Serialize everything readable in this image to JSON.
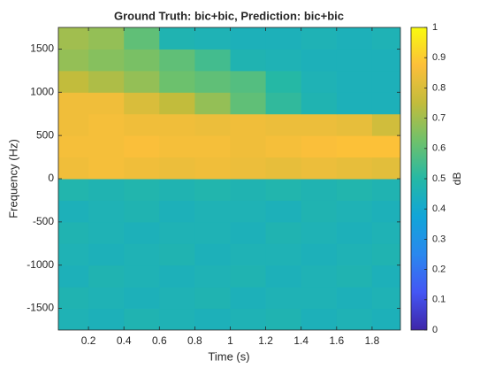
{
  "chart_data": {
    "type": "spectrogram",
    "title": "Ground Truth: bic+bic, Prediction: bic+bic",
    "x_label": "Time (s)",
    "y_label": "Frequency (Hz)",
    "colorbar_label": "dB",
    "x": [
      0.1,
      0.3,
      0.5,
      0.7,
      0.9,
      1.1,
      1.3,
      1.5,
      1.7,
      1.9
    ],
    "y": [
      -1625,
      -1375,
      -1125,
      -875,
      -625,
      -375,
      -125,
      125,
      375,
      625,
      875,
      1125,
      1375,
      1625
    ],
    "values": [
      [
        0.46,
        0.45,
        0.47,
        0.46,
        0.45,
        0.46,
        0.47,
        0.45,
        0.46,
        0.45
      ],
      [
        0.47,
        0.46,
        0.45,
        0.46,
        0.47,
        0.45,
        0.46,
        0.46,
        0.45,
        0.46
      ],
      [
        0.45,
        0.47,
        0.46,
        0.45,
        0.46,
        0.47,
        0.45,
        0.46,
        0.47,
        0.45
      ],
      [
        0.46,
        0.45,
        0.46,
        0.47,
        0.45,
        0.46,
        0.46,
        0.45,
        0.46,
        0.47
      ],
      [
        0.47,
        0.46,
        0.45,
        0.46,
        0.46,
        0.45,
        0.47,
        0.46,
        0.45,
        0.46
      ],
      [
        0.45,
        0.46,
        0.47,
        0.45,
        0.46,
        0.46,
        0.45,
        0.47,
        0.46,
        0.45
      ],
      [
        0.48,
        0.47,
        0.48,
        0.47,
        0.48,
        0.47,
        0.48,
        0.47,
        0.48,
        0.47
      ],
      [
        0.85,
        0.86,
        0.85,
        0.84,
        0.85,
        0.84,
        0.83,
        0.84,
        0.83,
        0.82
      ],
      [
        0.86,
        0.86,
        0.87,
        0.86,
        0.86,
        0.85,
        0.86,
        0.87,
        0.88,
        0.88
      ],
      [
        0.85,
        0.86,
        0.85,
        0.85,
        0.84,
        0.85,
        0.84,
        0.84,
        0.83,
        0.78
      ],
      [
        0.85,
        0.85,
        0.8,
        0.75,
        0.68,
        0.6,
        0.52,
        0.47,
        0.45,
        0.45
      ],
      [
        0.75,
        0.72,
        0.68,
        0.62,
        0.6,
        0.58,
        0.5,
        0.46,
        0.45,
        0.45
      ],
      [
        0.68,
        0.66,
        0.64,
        0.6,
        0.55,
        0.47,
        0.46,
        0.45,
        0.45,
        0.45
      ],
      [
        0.7,
        0.68,
        0.6,
        0.47,
        0.46,
        0.45,
        0.45,
        0.46,
        0.45,
        0.46
      ]
    ],
    "xlim": [
      0.03,
      1.96
    ],
    "ylim": [
      -1750,
      1750
    ],
    "xticks": [
      0.2,
      0.4,
      0.6,
      0.8,
      1,
      1.2,
      1.4,
      1.6,
      1.8
    ],
    "yticks": [
      -1500,
      -1000,
      -500,
      0,
      500,
      1000,
      1500
    ],
    "clim": [
      0,
      1
    ],
    "cticks": [
      0,
      0.1,
      0.2,
      0.3,
      0.4,
      0.5,
      0.6,
      0.7,
      0.8,
      0.9,
      1
    ],
    "colormap": [
      "#3e26a8",
      "#4456f4",
      "#2a88ee",
      "#11a5d8",
      "#25b8a5",
      "#6fc16b",
      "#c2bc3c",
      "#fcbf3a",
      "#f9fb0e"
    ]
  }
}
